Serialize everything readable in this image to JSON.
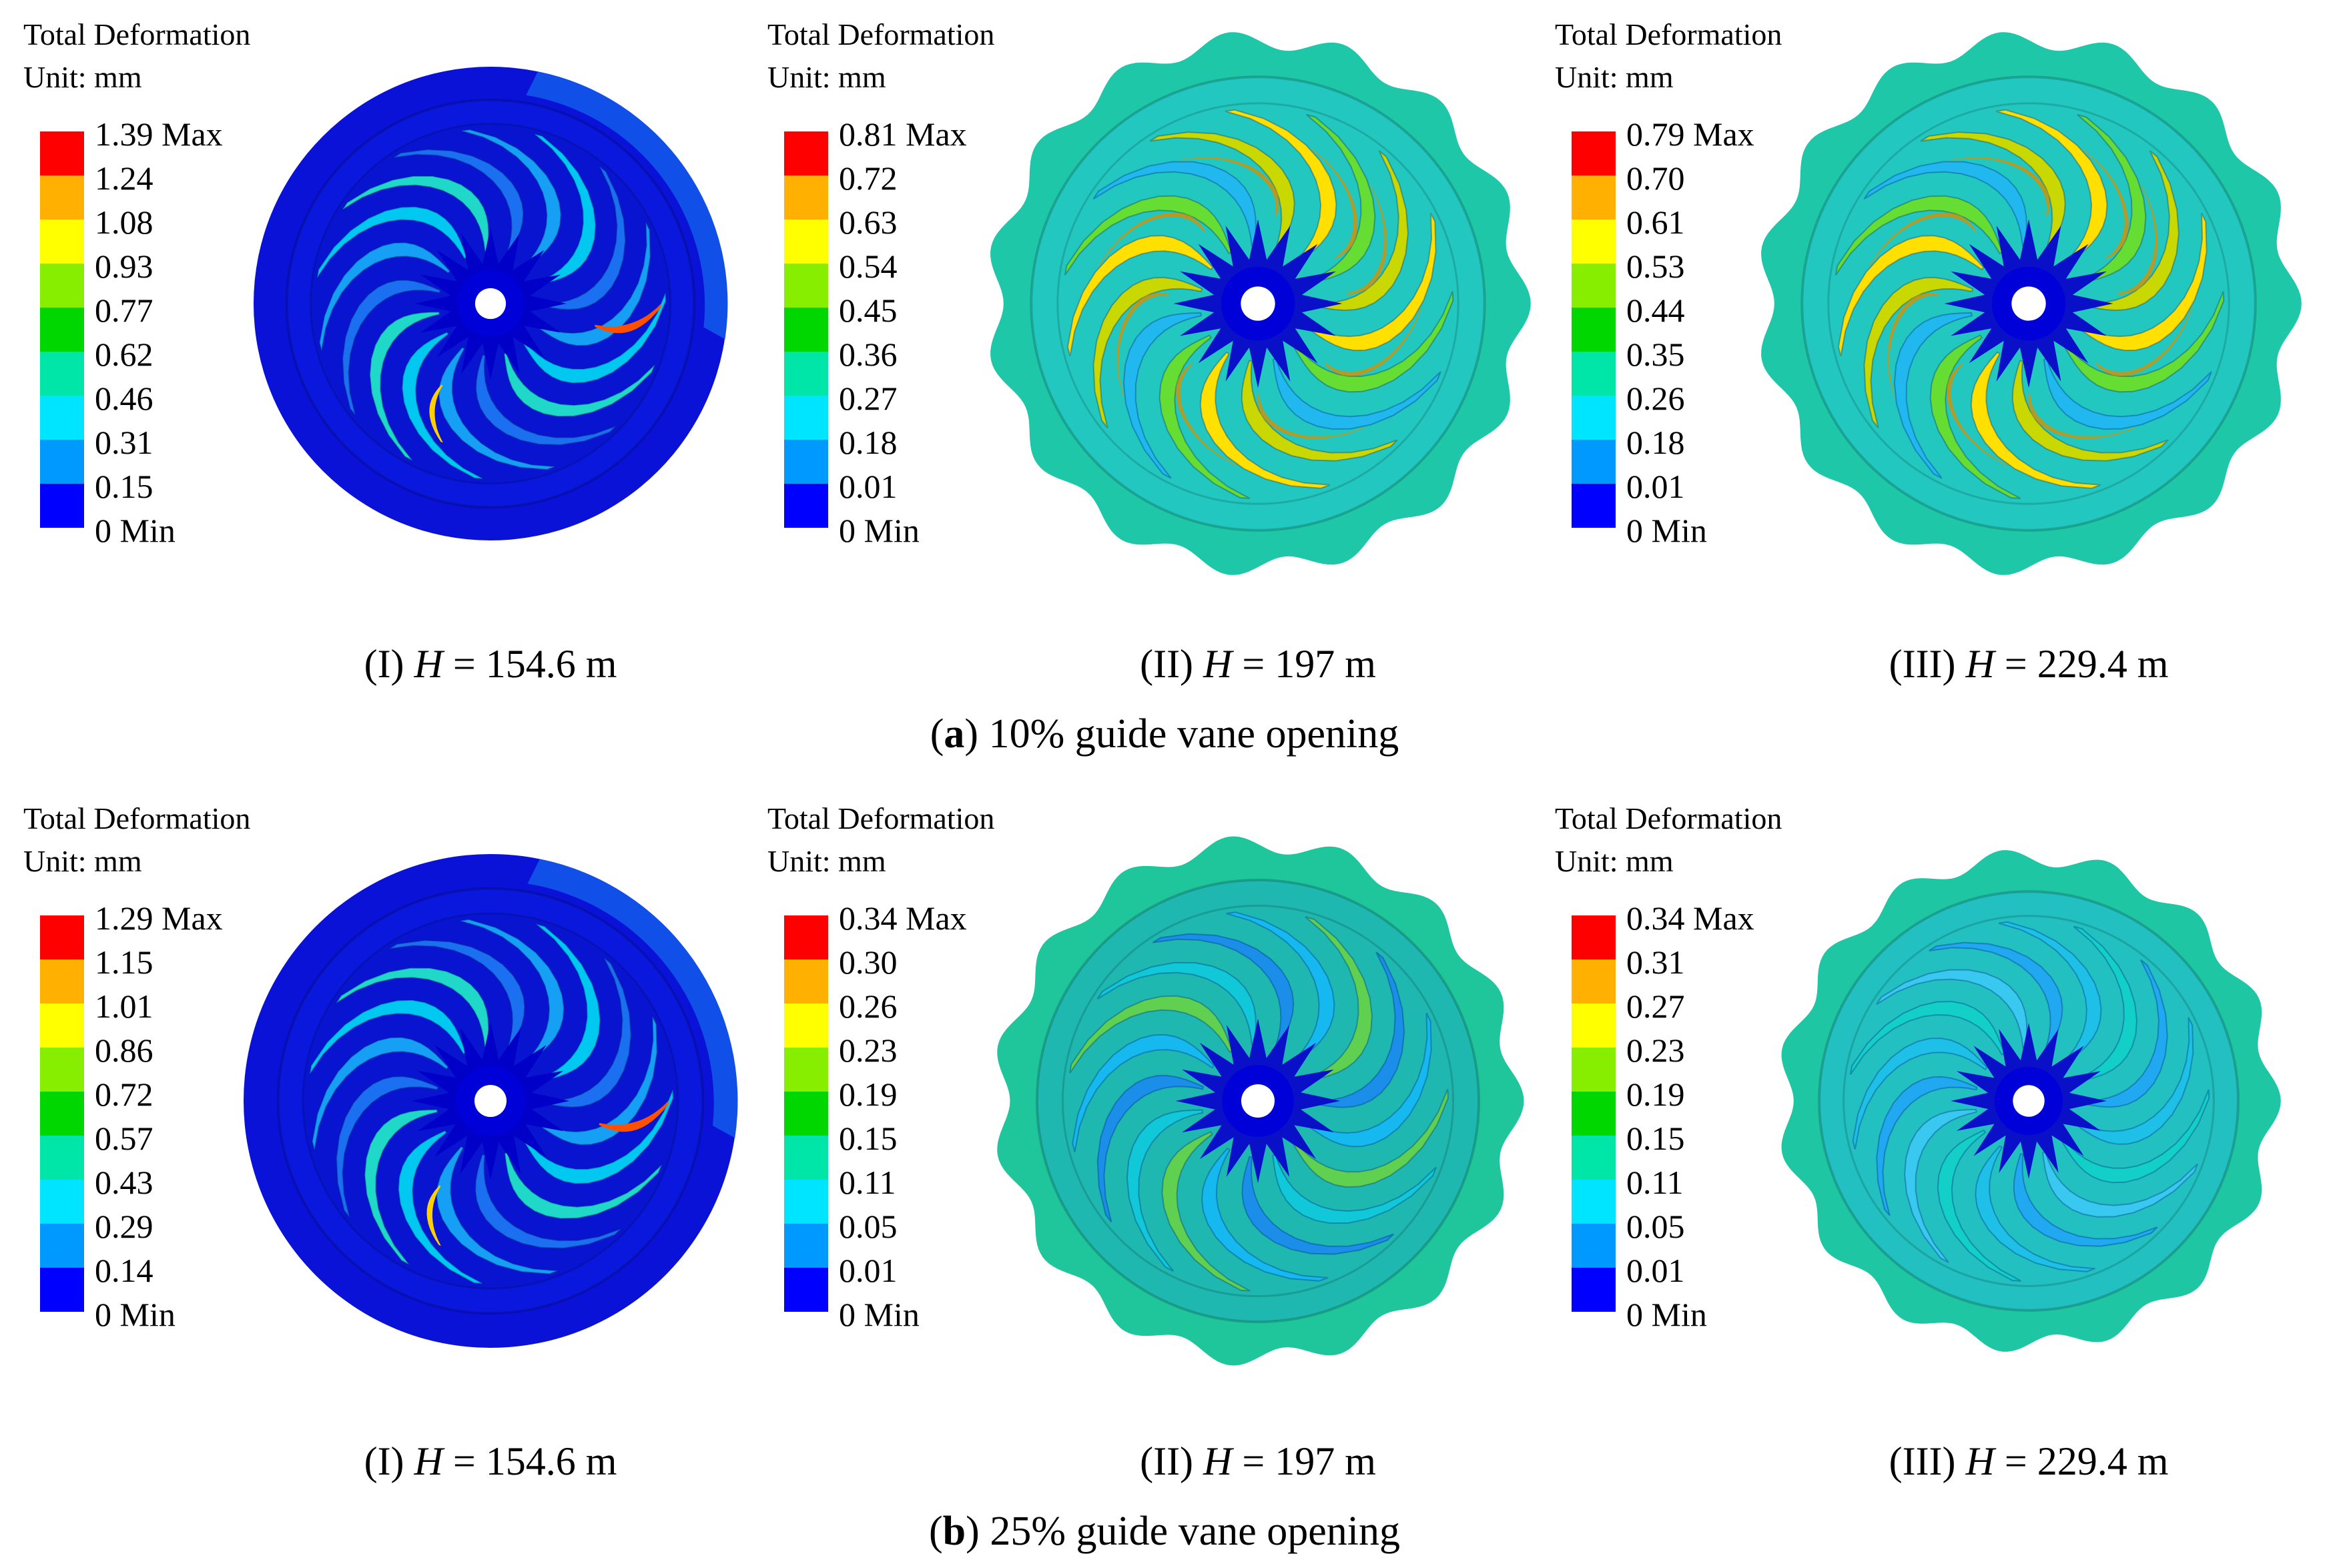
{
  "colors": {
    "scale": [
      "#0000ff",
      "#0099ff",
      "#00e5ff",
      "#00e6a8",
      "#00d600",
      "#88ee00",
      "#ffff00",
      "#ffb000",
      "#ff0000"
    ]
  },
  "rows": [
    {
      "letter": "a",
      "caption": "10% guide vane opening",
      "panels": [
        {
          "roman": "(I)",
          "symbol": "H",
          "value": "= 154.6 m",
          "title": "Total Deformation",
          "unit": "Unit: mm",
          "levels": [
            "1.39 Max",
            "1.24",
            "1.08",
            "0.93",
            "0.77",
            "0.62",
            "0.46",
            "0.31",
            "0.15",
            "0 Min"
          ],
          "style": "low",
          "scallops": 0
        },
        {
          "roman": "(II)",
          "symbol": "H",
          "value": "= 197 m",
          "title": "Total Deformation",
          "unit": "Unit: mm",
          "levels": [
            "0.81 Max",
            "0.72",
            "0.63",
            "0.54",
            "0.45",
            "0.36",
            "0.27",
            "0.18",
            "0.01",
            "0 Min"
          ],
          "style": "mid",
          "scallops": 15
        },
        {
          "roman": "(III)",
          "symbol": "H",
          "value": "= 229.4 m",
          "title": "Total Deformation",
          "unit": "Unit: mm",
          "levels": [
            "0.79 Max",
            "0.70",
            "0.61",
            "0.53",
            "0.44",
            "0.35",
            "0.26",
            "0.18",
            "0.01",
            "0 Min"
          ],
          "style": "mid",
          "scallops": 15
        }
      ]
    },
    {
      "letter": "b",
      "caption": "25% guide vane opening",
      "panels": [
        {
          "roman": "(I)",
          "symbol": "H",
          "value": "= 154.6 m",
          "title": "Total Deformation",
          "unit": "Unit: mm",
          "levels": [
            "1.29 Max",
            "1.15",
            "1.01",
            "0.86",
            "0.72",
            "0.57",
            "0.43",
            "0.29",
            "0.14",
            "0 Min"
          ],
          "style": "low",
          "scallops": 0
        },
        {
          "roman": "(II)",
          "symbol": "H",
          "value": "= 197 m",
          "title": "Total Deformation",
          "unit": "Unit: mm",
          "levels": [
            "0.34 Max",
            "0.30",
            "0.26",
            "0.23",
            "0.19",
            "0.15",
            "0.11",
            "0.05",
            "0.01",
            "0 Min"
          ],
          "style": "green",
          "scallops": 15
        },
        {
          "roman": "(III)",
          "symbol": "H",
          "value": "= 229.4 m",
          "title": "Total Deformation",
          "unit": "Unit: mm",
          "levels": [
            "0.34 Max",
            "0.31",
            "0.27",
            "0.23",
            "0.19",
            "0.15",
            "0.11",
            "0.05",
            "0.01",
            "0 Min"
          ],
          "style": "teal",
          "scallops": 15
        }
      ]
    }
  ]
}
